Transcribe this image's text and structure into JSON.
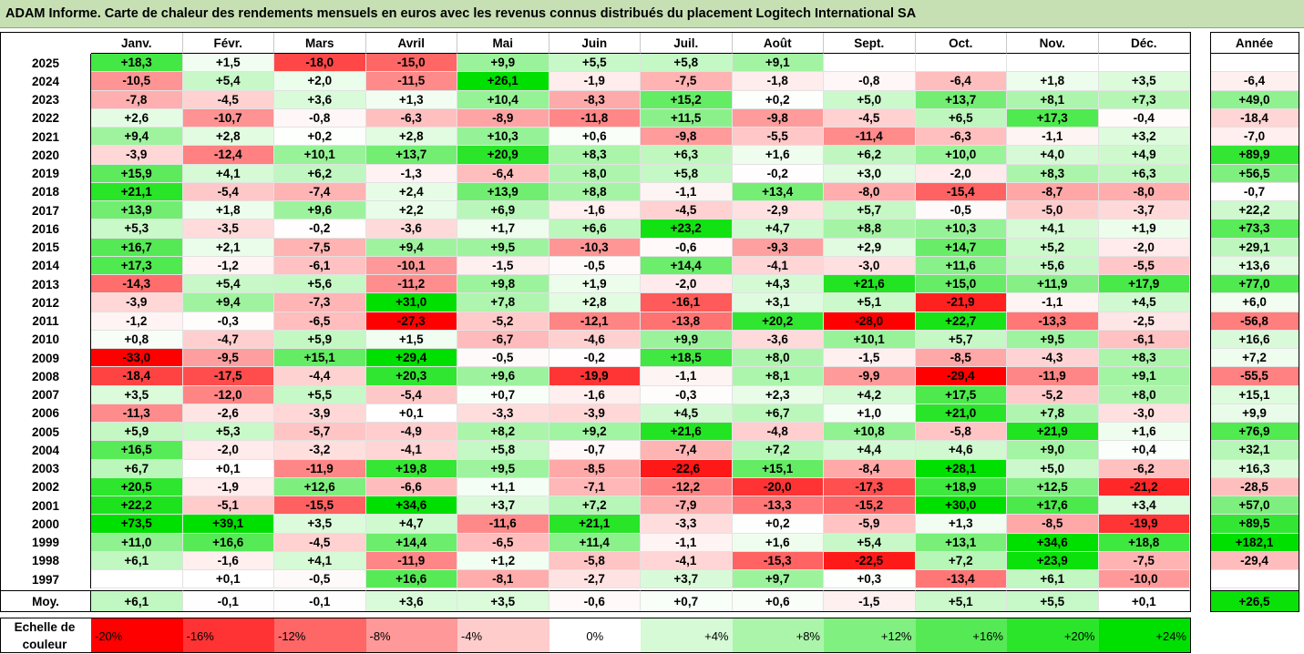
{
  "title": "ADAM Informe. Carte de chaleur des rendements mensuels en euros avec les revenus connus distribués du placement Logitech International SA",
  "chart_data": {
    "type": "heatmap",
    "months": [
      "Janv.",
      "Févr.",
      "Mars",
      "Avril",
      "Mai",
      "Juin",
      "Juil.",
      "Août",
      "Sept.",
      "Oct.",
      "Nov.",
      "Déc."
    ],
    "year_header": "Année",
    "rows": [
      {
        "year": "2025",
        "values": [
          "+18,3",
          "+1,5",
          "-18,0",
          "-15,0",
          "+9,9",
          "+5,5",
          "+5,8",
          "+9,1",
          "",
          "",
          "",
          ""
        ],
        "annual": ""
      },
      {
        "year": "2024",
        "values": [
          "-10,5",
          "+5,4",
          "+2,0",
          "-11,5",
          "+26,1",
          "-1,9",
          "-7,5",
          "-1,8",
          "-0,8",
          "-6,4",
          "+1,8",
          "+3,5"
        ],
        "annual": "-6,4"
      },
      {
        "year": "2023",
        "values": [
          "-7,8",
          "-4,5",
          "+3,6",
          "+1,3",
          "+10,4",
          "-8,3",
          "+15,2",
          "+0,2",
          "+5,0",
          "+13,7",
          "+8,1",
          "+7,3"
        ],
        "annual": "+49,0"
      },
      {
        "year": "2022",
        "values": [
          "+2,6",
          "-10,7",
          "-0,8",
          "-6,3",
          "-8,9",
          "-11,8",
          "+11,5",
          "-9,8",
          "-4,5",
          "+6,5",
          "+17,3",
          "-0,4"
        ],
        "annual": "-18,4"
      },
      {
        "year": "2021",
        "values": [
          "+9,4",
          "+2,8",
          "+0,2",
          "+2,8",
          "+10,3",
          "+0,6",
          "-9,8",
          "-5,5",
          "-11,4",
          "-6,3",
          "-1,1",
          "+3,2"
        ],
        "annual": "-7,0"
      },
      {
        "year": "2020",
        "values": [
          "-3,9",
          "-12,4",
          "+10,1",
          "+13,7",
          "+20,9",
          "+8,3",
          "+6,3",
          "+1,6",
          "+6,2",
          "+10,0",
          "+4,0",
          "+4,9"
        ],
        "annual": "+89,9"
      },
      {
        "year": "2019",
        "values": [
          "+15,9",
          "+4,1",
          "+6,2",
          "-1,3",
          "-6,4",
          "+8,0",
          "+5,8",
          "-0,2",
          "+3,0",
          "-2,0",
          "+8,3",
          "+6,3"
        ],
        "annual": "+56,5"
      },
      {
        "year": "2018",
        "values": [
          "+21,1",
          "-5,4",
          "-7,4",
          "+2,4",
          "+13,9",
          "+8,8",
          "-1,1",
          "+13,4",
          "-8,0",
          "-15,4",
          "-8,7",
          "-8,0"
        ],
        "annual": "-0,7"
      },
      {
        "year": "2017",
        "values": [
          "+13,9",
          "+1,8",
          "+9,6",
          "+2,2",
          "+6,9",
          "-1,6",
          "-4,5",
          "-2,9",
          "+5,7",
          "-0,5",
          "-5,0",
          "-3,7"
        ],
        "annual": "+22,2"
      },
      {
        "year": "2016",
        "values": [
          "+5,3",
          "-3,5",
          "-0,2",
          "-3,6",
          "+1,7",
          "+6,6",
          "+23,2",
          "+4,7",
          "+8,8",
          "+10,3",
          "+4,1",
          "+1,9"
        ],
        "annual": "+73,3"
      },
      {
        "year": "2015",
        "values": [
          "+16,7",
          "+2,1",
          "-7,5",
          "+9,4",
          "+9,5",
          "-10,3",
          "-0,6",
          "-9,3",
          "+2,9",
          "+14,7",
          "+5,2",
          "-2,0"
        ],
        "annual": "+29,1"
      },
      {
        "year": "2014",
        "values": [
          "+17,3",
          "-1,2",
          "-6,1",
          "-10,1",
          "-1,5",
          "-0,5",
          "+14,4",
          "-4,1",
          "-3,0",
          "+11,6",
          "+5,6",
          "-5,5"
        ],
        "annual": "+13,6"
      },
      {
        "year": "2013",
        "values": [
          "-14,3",
          "+5,4",
          "+5,6",
          "-11,2",
          "+9,8",
          "+1,9",
          "-2,0",
          "+4,3",
          "+21,6",
          "+15,0",
          "+11,9",
          "+17,9"
        ],
        "annual": "+77,0"
      },
      {
        "year": "2012",
        "values": [
          "-3,9",
          "+9,4",
          "-7,3",
          "+31,0",
          "+7,8",
          "+2,8",
          "-16,1",
          "+3,1",
          "+5,1",
          "-21,9",
          "-1,1",
          "+4,5"
        ],
        "annual": "+6,0"
      },
      {
        "year": "2011",
        "values": [
          "-1,2",
          "-0,3",
          "-6,5",
          "-27,3",
          "-5,2",
          "-12,1",
          "-13,8",
          "+20,2",
          "-28,0",
          "+22,7",
          "-13,3",
          "-2,5"
        ],
        "annual": "-56,8"
      },
      {
        "year": "2010",
        "values": [
          "+0,8",
          "-4,7",
          "+5,9",
          "+1,5",
          "-6,7",
          "-4,6",
          "+9,9",
          "-3,6",
          "+10,1",
          "+5,7",
          "+9,5",
          "-6,1"
        ],
        "annual": "+16,6"
      },
      {
        "year": "2009",
        "values": [
          "-33,0",
          "-9,5",
          "+15,1",
          "+29,4",
          "-0,5",
          "-0,2",
          "+18,5",
          "+8,0",
          "-1,5",
          "-8,5",
          "-4,3",
          "+8,3"
        ],
        "annual": "+7,2"
      },
      {
        "year": "2008",
        "values": [
          "-18,4",
          "-17,5",
          "-4,4",
          "+20,3",
          "+9,6",
          "-19,9",
          "-1,1",
          "+8,1",
          "-9,9",
          "-29,4",
          "-11,9",
          "+9,1"
        ],
        "annual": "-55,5"
      },
      {
        "year": "2007",
        "values": [
          "+3,5",
          "-12,0",
          "+5,5",
          "-5,4",
          "+0,7",
          "-1,6",
          "-0,3",
          "+2,3",
          "+4,2",
          "+17,5",
          "-5,2",
          "+8,0"
        ],
        "annual": "+15,1"
      },
      {
        "year": "2006",
        "values": [
          "-11,3",
          "-2,6",
          "-3,9",
          "+0,1",
          "-3,3",
          "-3,9",
          "+4,5",
          "+6,7",
          "+1,0",
          "+21,0",
          "+7,8",
          "-3,0"
        ],
        "annual": "+9,9"
      },
      {
        "year": "2005",
        "values": [
          "+5,9",
          "+5,3",
          "-5,7",
          "-4,9",
          "+8,2",
          "+9,2",
          "+21,6",
          "-4,8",
          "+10,8",
          "-5,8",
          "+21,9",
          "+1,6"
        ],
        "annual": "+76,9"
      },
      {
        "year": "2004",
        "values": [
          "+16,5",
          "-2,0",
          "-3,2",
          "-4,1",
          "+5,8",
          "-0,7",
          "-7,4",
          "+7,2",
          "+4,4",
          "+4,6",
          "+9,0",
          "+0,4"
        ],
        "annual": "+32,1"
      },
      {
        "year": "2003",
        "values": [
          "+6,7",
          "+0,1",
          "-11,9",
          "+19,8",
          "+9,5",
          "-8,5",
          "-22,6",
          "+15,1",
          "-8,4",
          "+28,1",
          "+5,0",
          "-6,2"
        ],
        "annual": "+16,3"
      },
      {
        "year": "2002",
        "values": [
          "+20,5",
          "-1,9",
          "+12,6",
          "-6,6",
          "+1,1",
          "-7,1",
          "-12,2",
          "-20,0",
          "-17,3",
          "+18,9",
          "+12,5",
          "-21,2"
        ],
        "annual": "-28,5"
      },
      {
        "year": "2001",
        "values": [
          "+22,2",
          "-5,1",
          "-15,5",
          "+34,6",
          "+3,7",
          "+7,2",
          "-7,9",
          "-13,3",
          "-15,2",
          "+30,0",
          "+17,6",
          "+3,4"
        ],
        "annual": "+57,0"
      },
      {
        "year": "2000",
        "values": [
          "+73,5",
          "+39,1",
          "+3,5",
          "+4,7",
          "-11,6",
          "+21,1",
          "-3,3",
          "+0,2",
          "-5,9",
          "+1,3",
          "-8,5",
          "-19,9"
        ],
        "annual": "+89,5"
      },
      {
        "year": "1999",
        "values": [
          "+11,0",
          "+16,6",
          "-4,5",
          "+14,4",
          "-6,5",
          "+11,4",
          "-1,1",
          "+1,6",
          "+5,4",
          "+13,1",
          "+34,6",
          "+18,8"
        ],
        "annual": "+182,1"
      },
      {
        "year": "1998",
        "values": [
          "+6,1",
          "-1,6",
          "+4,1",
          "-11,9",
          "+1,2",
          "-5,8",
          "-4,1",
          "-15,3",
          "-22,5",
          "+7,2",
          "+23,9",
          "-7,5"
        ],
        "annual": "-29,4"
      },
      {
        "year": "1997",
        "values": [
          "",
          "+0,1",
          "-0,5",
          "+16,6",
          "-8,1",
          "-2,7",
          "+3,7",
          "+9,7",
          "+0,3",
          "-13,4",
          "+6,1",
          "-10,0"
        ],
        "annual": ""
      }
    ],
    "average": {
      "label": "Moy.",
      "values": [
        "+6,1",
        "-0,1",
        "-0,1",
        "+3,6",
        "+3,5",
        "-0,6",
        "+0,7",
        "+0,6",
        "-1,5",
        "+5,1",
        "+5,5",
        "+0,1"
      ],
      "annual": "+26,5"
    },
    "scale": {
      "label_line1": "Echelle de",
      "label_line2": "couleur",
      "stops": [
        {
          "label": "-20%",
          "value": -20,
          "color": "#ff0000",
          "align": "left"
        },
        {
          "label": "-16%",
          "value": -16,
          "color": "#ff3333",
          "align": "left"
        },
        {
          "label": "-12%",
          "value": -12,
          "color": "#ff6666",
          "align": "left"
        },
        {
          "label": "-8%",
          "value": -8,
          "color": "#ff9999",
          "align": "left"
        },
        {
          "label": "-4%",
          "value": -4,
          "color": "#ffcccc",
          "align": "left"
        },
        {
          "label": "0%",
          "value": 0,
          "color": "#ffffff",
          "align": "center"
        },
        {
          "label": "+4%",
          "value": 4,
          "color": "#d5fad5",
          "align": "right"
        },
        {
          "label": "+8%",
          "value": 8,
          "color": "#abf5ab",
          "align": "right"
        },
        {
          "label": "+12%",
          "value": 12,
          "color": "#80f080",
          "align": "right"
        },
        {
          "label": "+16%",
          "value": 16,
          "color": "#55ea55",
          "align": "right"
        },
        {
          "label": "+20%",
          "value": 20,
          "color": "#2be52b",
          "align": "right"
        },
        {
          "label": "+24%",
          "value": 24,
          "color": "#00e000",
          "align": "right"
        }
      ]
    }
  }
}
